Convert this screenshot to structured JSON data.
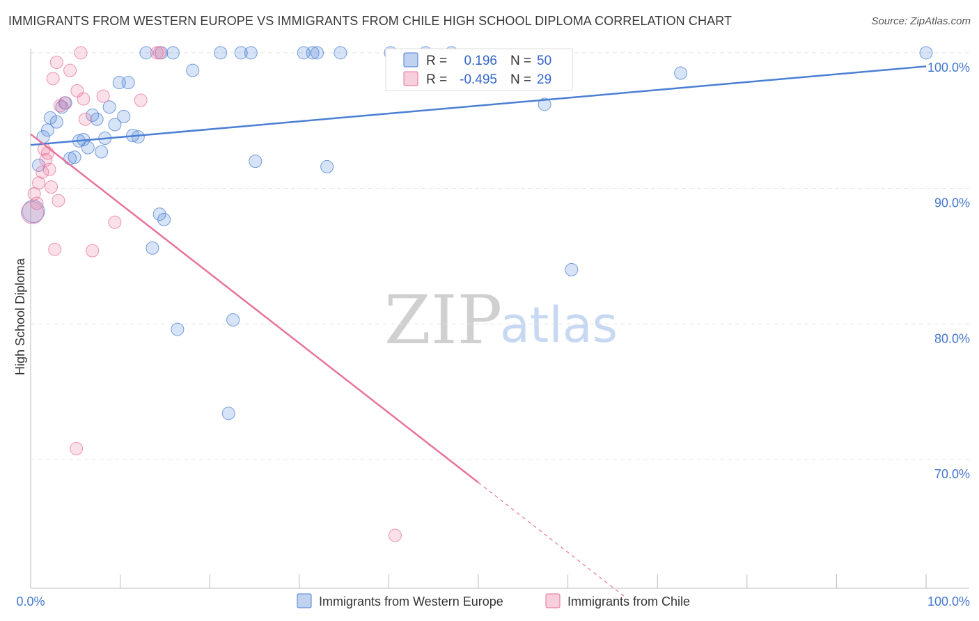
{
  "header": {
    "title": "IMMIGRANTS FROM WESTERN EUROPE VS IMMIGRANTS FROM CHILE HIGH SCHOOL DIPLOMA CORRELATION CHART",
    "source": "Source: ZipAtlas.com"
  },
  "watermark": {
    "zip": "ZIP",
    "atlas": "atlas"
  },
  "stats": [
    {
      "r_label": "R =",
      "r_value": "0.196",
      "n_label": "N =",
      "n_value": "50",
      "color": "#4a7fd4"
    },
    {
      "r_label": "R =",
      "r_value": "-0.495",
      "n_label": "N =",
      "n_value": "29",
      "color": "#e8739a"
    }
  ],
  "legend": [
    {
      "label": "Immigrants from Western Europe",
      "color": "#4a7fd4"
    },
    {
      "label": "Immigrants from Chile",
      "color": "#e8739a"
    }
  ],
  "chart_data": {
    "type": "scatter",
    "title": "IMMIGRANTS FROM WESTERN EUROPE VS IMMIGRANTS FROM CHILE HIGH SCHOOL DIPLOMA CORRELATION CHART",
    "xlabel": "",
    "ylabel": "High School Diploma",
    "xlim": [
      0,
      100
    ],
    "ylim": [
      60.5,
      100.3
    ],
    "x_tick_labels": [
      "0.0%",
      "100.0%"
    ],
    "y_ticks": [
      70,
      80,
      90,
      100
    ],
    "y_tick_labels": [
      "70.0%",
      "80.0%",
      "90.0%",
      "100.0%"
    ],
    "grid": true,
    "series": [
      {
        "name": "Immigrants from Western Europe",
        "color": "#4a7fd4",
        "trend": {
          "x0": 0,
          "y0": 93.2,
          "x1": 100,
          "y1": 99.0
        },
        "points": [
          {
            "x": 0.3,
            "y": 88.3,
            "size": "large"
          },
          {
            "x": 0.9,
            "y": 91.7
          },
          {
            "x": 1.4,
            "y": 93.8
          },
          {
            "x": 1.9,
            "y": 94.3
          },
          {
            "x": 2.2,
            "y": 95.2
          },
          {
            "x": 2.9,
            "y": 94.9
          },
          {
            "x": 3.5,
            "y": 96.0
          },
          {
            "x": 3.9,
            "y": 96.3
          },
          {
            "x": 4.4,
            "y": 92.2
          },
          {
            "x": 4.9,
            "y": 92.3
          },
          {
            "x": 5.4,
            "y": 93.5
          },
          {
            "x": 5.9,
            "y": 93.6
          },
          {
            "x": 6.4,
            "y": 93.0
          },
          {
            "x": 6.9,
            "y": 95.4
          },
          {
            "x": 7.4,
            "y": 95.1
          },
          {
            "x": 7.9,
            "y": 92.7
          },
          {
            "x": 8.3,
            "y": 93.7
          },
          {
            "x": 8.8,
            "y": 96.0
          },
          {
            "x": 9.4,
            "y": 94.7
          },
          {
            "x": 9.9,
            "y": 97.8
          },
          {
            "x": 10.4,
            "y": 95.3
          },
          {
            "x": 10.9,
            "y": 97.8
          },
          {
            "x": 11.4,
            "y": 93.9
          },
          {
            "x": 12.0,
            "y": 93.8
          },
          {
            "x": 12.9,
            "y": 100.0
          },
          {
            "x": 13.6,
            "y": 85.6
          },
          {
            "x": 14.4,
            "y": 88.1
          },
          {
            "x": 14.9,
            "y": 87.7
          },
          {
            "x": 14.6,
            "y": 100.0
          },
          {
            "x": 15.9,
            "y": 100.0
          },
          {
            "x": 16.4,
            "y": 79.6
          },
          {
            "x": 18.1,
            "y": 98.7
          },
          {
            "x": 21.2,
            "y": 100.0
          },
          {
            "x": 22.6,
            "y": 80.3
          },
          {
            "x": 22.1,
            "y": 73.4
          },
          {
            "x": 23.5,
            "y": 100.0
          },
          {
            "x": 24.6,
            "y": 100.0
          },
          {
            "x": 25.1,
            "y": 92.0
          },
          {
            "x": 30.5,
            "y": 100.0
          },
          {
            "x": 31.5,
            "y": 100.0
          },
          {
            "x": 32.0,
            "y": 100.0
          },
          {
            "x": 33.1,
            "y": 91.6
          },
          {
            "x": 34.6,
            "y": 100.0
          },
          {
            "x": 40.2,
            "y": 100.0
          },
          {
            "x": 44.1,
            "y": 100.0
          },
          {
            "x": 47.0,
            "y": 100.0
          },
          {
            "x": 57.4,
            "y": 96.2
          },
          {
            "x": 60.4,
            "y": 84.0
          },
          {
            "x": 72.6,
            "y": 98.5
          },
          {
            "x": 100.0,
            "y": 100.0
          }
        ]
      },
      {
        "name": "Immigrants from Chile",
        "color": "#e8739a",
        "trend": {
          "x0": 0,
          "y0": 94.0,
          "x1": 50,
          "y1": 68.3
        },
        "trend_dashed": {
          "x0": 50,
          "y0": 68.3,
          "x1": 66.5,
          "y1": 59.8
        },
        "points": [
          {
            "x": 0.2,
            "y": 88.2,
            "size": "large"
          },
          {
            "x": 0.4,
            "y": 89.6
          },
          {
            "x": 0.7,
            "y": 88.9
          },
          {
            "x": 0.9,
            "y": 90.4
          },
          {
            "x": 1.3,
            "y": 91.2
          },
          {
            "x": 1.5,
            "y": 92.9
          },
          {
            "x": 1.7,
            "y": 92.1
          },
          {
            "x": 1.9,
            "y": 92.6
          },
          {
            "x": 2.1,
            "y": 91.4
          },
          {
            "x": 2.3,
            "y": 90.1
          },
          {
            "x": 2.5,
            "y": 98.1
          },
          {
            "x": 2.7,
            "y": 85.5
          },
          {
            "x": 2.9,
            "y": 99.3
          },
          {
            "x": 3.1,
            "y": 89.1
          },
          {
            "x": 3.3,
            "y": 96.1
          },
          {
            "x": 3.8,
            "y": 96.3
          },
          {
            "x": 4.4,
            "y": 98.7
          },
          {
            "x": 5.1,
            "y": 70.8
          },
          {
            "x": 5.2,
            "y": 97.2
          },
          {
            "x": 5.6,
            "y": 100.0
          },
          {
            "x": 5.9,
            "y": 96.6
          },
          {
            "x": 6.1,
            "y": 95.1
          },
          {
            "x": 6.9,
            "y": 85.4
          },
          {
            "x": 8.1,
            "y": 96.8
          },
          {
            "x": 9.4,
            "y": 87.5
          },
          {
            "x": 12.3,
            "y": 96.5
          },
          {
            "x": 14.1,
            "y": 100.0
          },
          {
            "x": 14.4,
            "y": 100.0
          },
          {
            "x": 40.7,
            "y": 64.4
          }
        ]
      }
    ]
  }
}
